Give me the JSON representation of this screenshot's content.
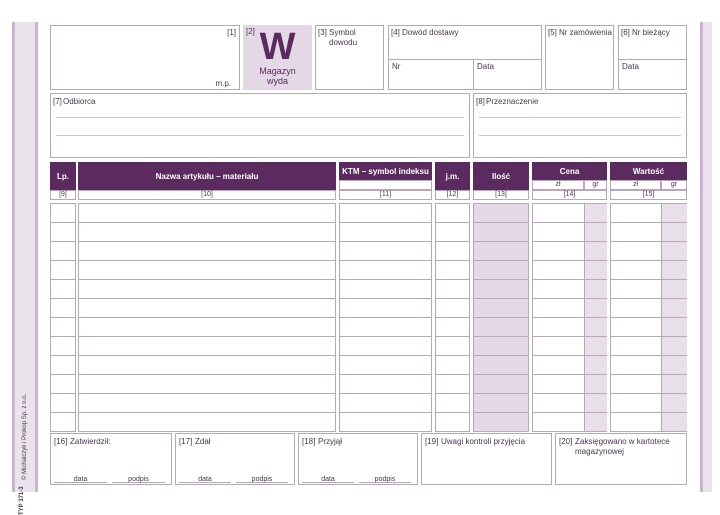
{
  "side": {
    "code": "TYP 371-3",
    "publisher": "© Michalczyk i Prokop Sp. z o.o."
  },
  "header": {
    "f1": {
      "num": "[1]",
      "mp": "m.p."
    },
    "f2": {
      "num": "[2]",
      "letter": "W",
      "title": "Magazyn wyda"
    },
    "f3": {
      "num": "[3]",
      "label": "Symbol dowodu"
    },
    "f4": {
      "num": "[4]",
      "label": "Dowód dostawy",
      "nr": "Nr",
      "data": "Data"
    },
    "f5": {
      "num": "[5]",
      "label": "Nr zamówienia"
    },
    "f6": {
      "num": "[6]",
      "label": "Nr bieżący",
      "data": "Data"
    },
    "f7": {
      "num": "[7]",
      "label": "Odbiorca"
    },
    "f8": {
      "num": "[8]",
      "label": "Przeznaczenie"
    }
  },
  "table": {
    "columns": [
      {
        "label": "Lp.",
        "num": "[9]"
      },
      {
        "label": "Nazwa artykułu – materiału",
        "num": "[10]"
      },
      {
        "label": "KTM – symbol indeksu",
        "num": "[11]"
      },
      {
        "label": "j.m.",
        "num": "[12]"
      },
      {
        "label": "Ilość",
        "num": "[13]"
      },
      {
        "label": "Cena",
        "sub": [
          "zł",
          "gr"
        ],
        "num": "[14]"
      },
      {
        "label": "Wartość",
        "sub": [
          "zł",
          "gr"
        ],
        "num": "[15]"
      }
    ]
  },
  "footer": [
    {
      "num": "[16]",
      "label": "Zatwierdził:",
      "data": "data",
      "podpis": "podpis"
    },
    {
      "num": "[17]",
      "label": "Zdał",
      "data": "data",
      "podpis": "podpis"
    },
    {
      "num": "[18]",
      "label": "Przyjął",
      "data": "data",
      "podpis": "podpis"
    },
    {
      "num": "[19]",
      "label": "Uwagi kontroli przyjęcia"
    },
    {
      "num": "[20]",
      "label": "Zaksięgowano w kartotece magazynowej"
    }
  ]
}
